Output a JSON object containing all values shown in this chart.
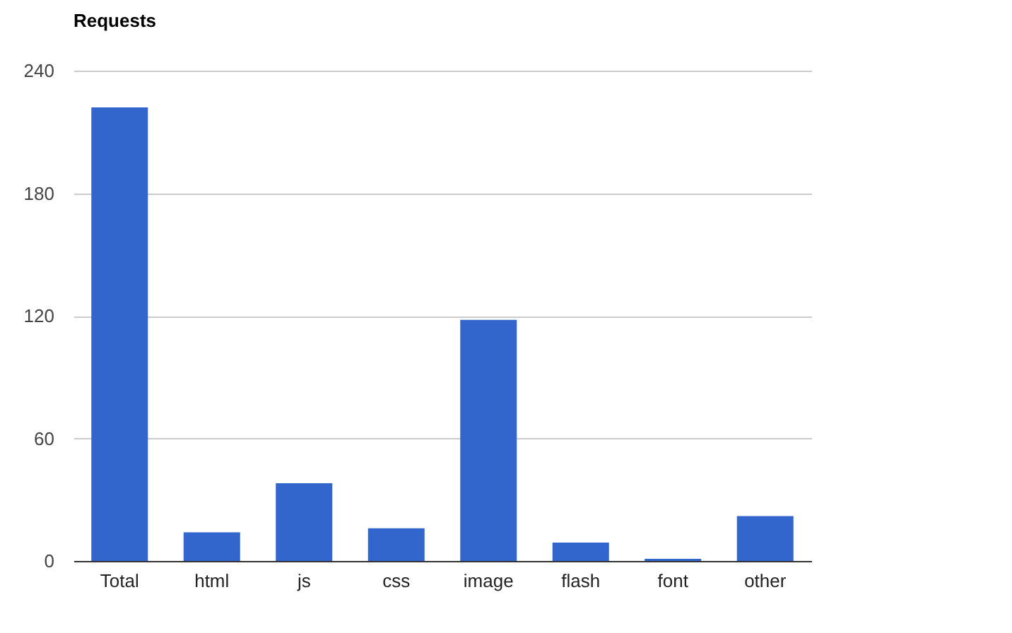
{
  "chart_data": {
    "type": "bar",
    "title": "Requests",
    "categories": [
      "Total",
      "html",
      "js",
      "css",
      "image",
      "flash",
      "font",
      "other"
    ],
    "values": [
      222,
      14,
      38,
      16,
      118,
      9,
      1,
      22
    ],
    "color": "#3366cc",
    "ylim": [
      0,
      240
    ],
    "yticks": [
      0,
      60,
      120,
      180,
      240
    ],
    "grid": "y"
  }
}
